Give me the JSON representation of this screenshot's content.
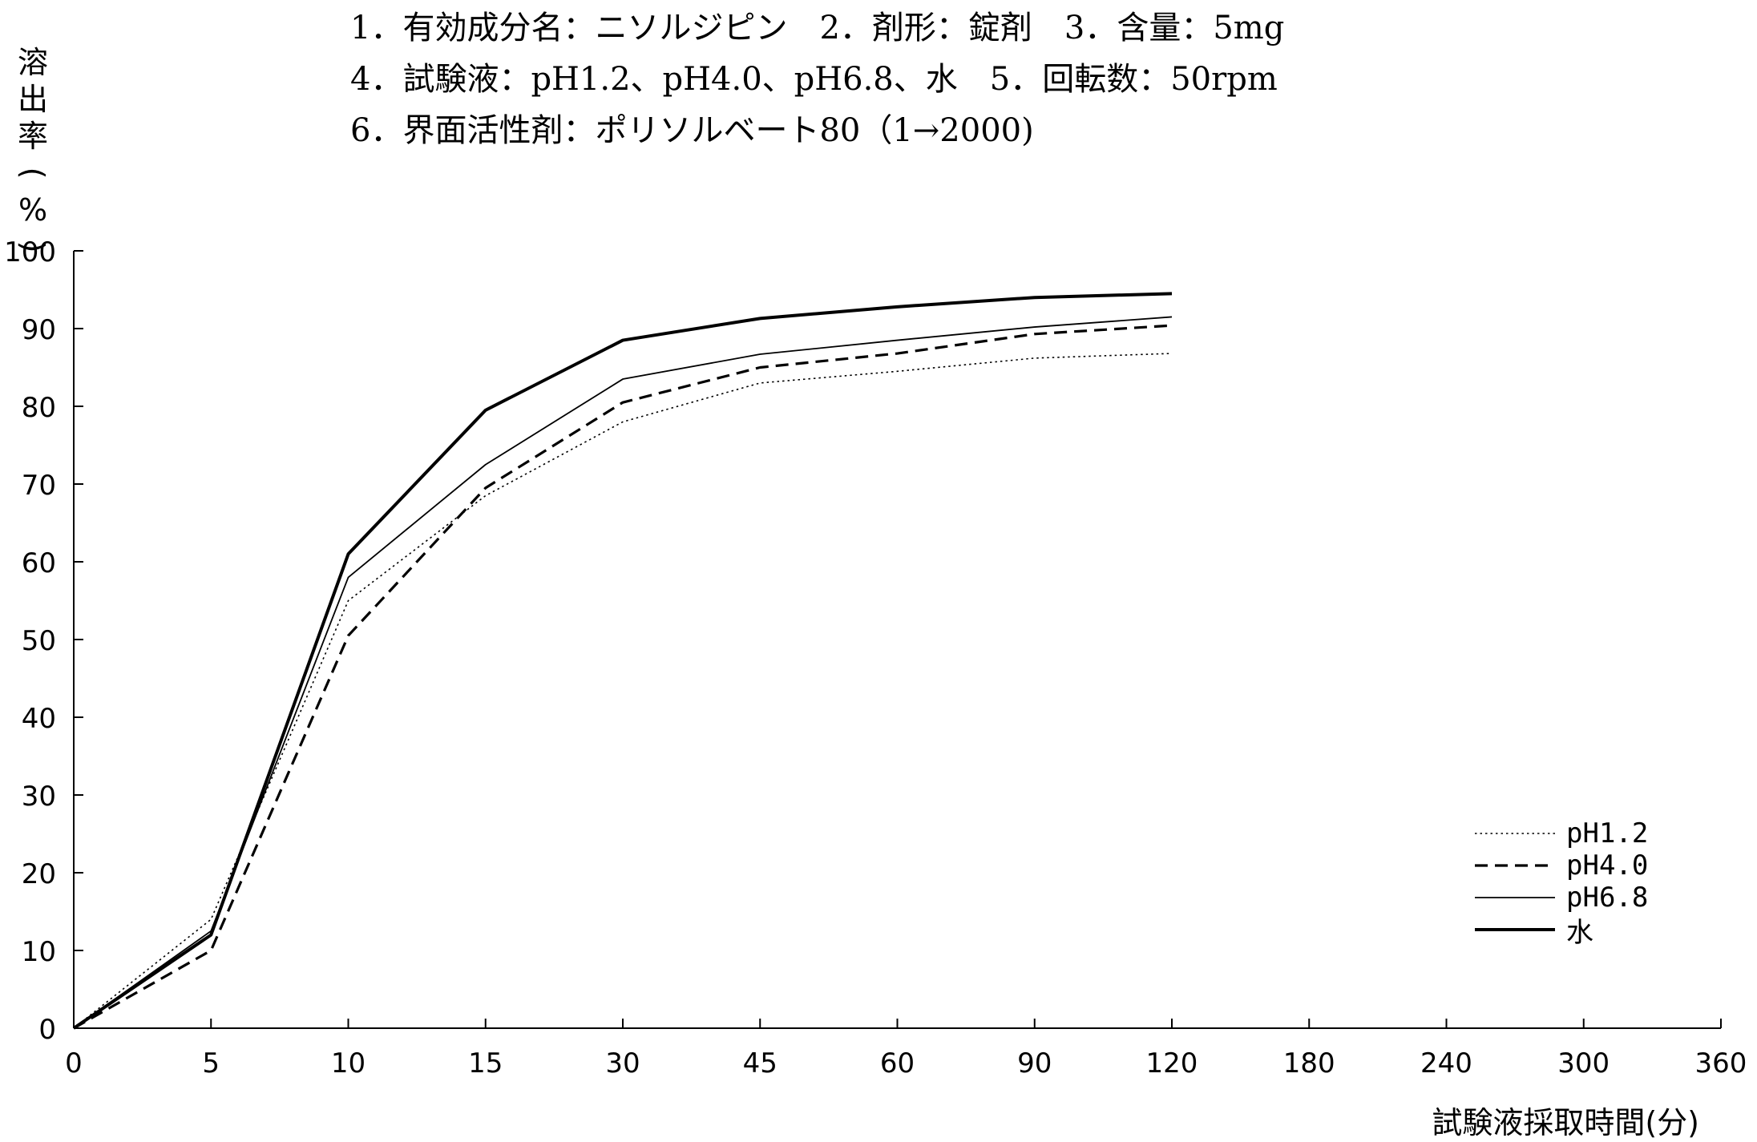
{
  "header": {
    "line1": "1．有効成分名：ニソルジピン　2．剤形：錠剤　3．含量：5mg",
    "line2": "4．試験液：pH1.2、pH4.0、pH6.8、水　5．回転数：50rpm",
    "line3": "6．界面活性剤：ポリソルベート80（1→2000)"
  },
  "chart_data": {
    "type": "line",
    "title": "",
    "xlabel": "試験液採取時間(分)",
    "ylabel": "溶出率(%)",
    "ylabel_chars": [
      "溶",
      "出",
      "率",
      "(",
      "%",
      ")"
    ],
    "x_ticks": [
      "0",
      "5",
      "10",
      "15",
      "30",
      "45",
      "60",
      "90",
      "120",
      "180",
      "240",
      "300",
      "360"
    ],
    "y_ticks": [
      "0",
      "10",
      "20",
      "30",
      "40",
      "50",
      "60",
      "70",
      "80",
      "90",
      "100"
    ],
    "ylim": [
      0,
      100
    ],
    "x_scale": "categorical (unequal time intervals)",
    "grid": false,
    "legend_position": "bottom-right",
    "x": [
      0,
      5,
      10,
      15,
      30,
      45,
      60,
      90,
      120
    ],
    "series": [
      {
        "name": "pH1.2",
        "style": "dotted",
        "values": [
          0,
          14,
          55,
          68.5,
          78,
          83,
          84.5,
          86.2,
          86.8
        ]
      },
      {
        "name": "pH4.0",
        "style": "dashed",
        "values": [
          0,
          10,
          50.5,
          69.5,
          80.5,
          85,
          86.8,
          89.3,
          90.4
        ]
      },
      {
        "name": "pH6.8",
        "style": "thin",
        "values": [
          0,
          12.5,
          58,
          72.5,
          83.5,
          86.7,
          88.5,
          90.2,
          91.5
        ]
      },
      {
        "name": "水",
        "style": "thick",
        "values": [
          0,
          12,
          61,
          79.5,
          88.5,
          91.3,
          92.8,
          94,
          94.5
        ]
      }
    ]
  }
}
